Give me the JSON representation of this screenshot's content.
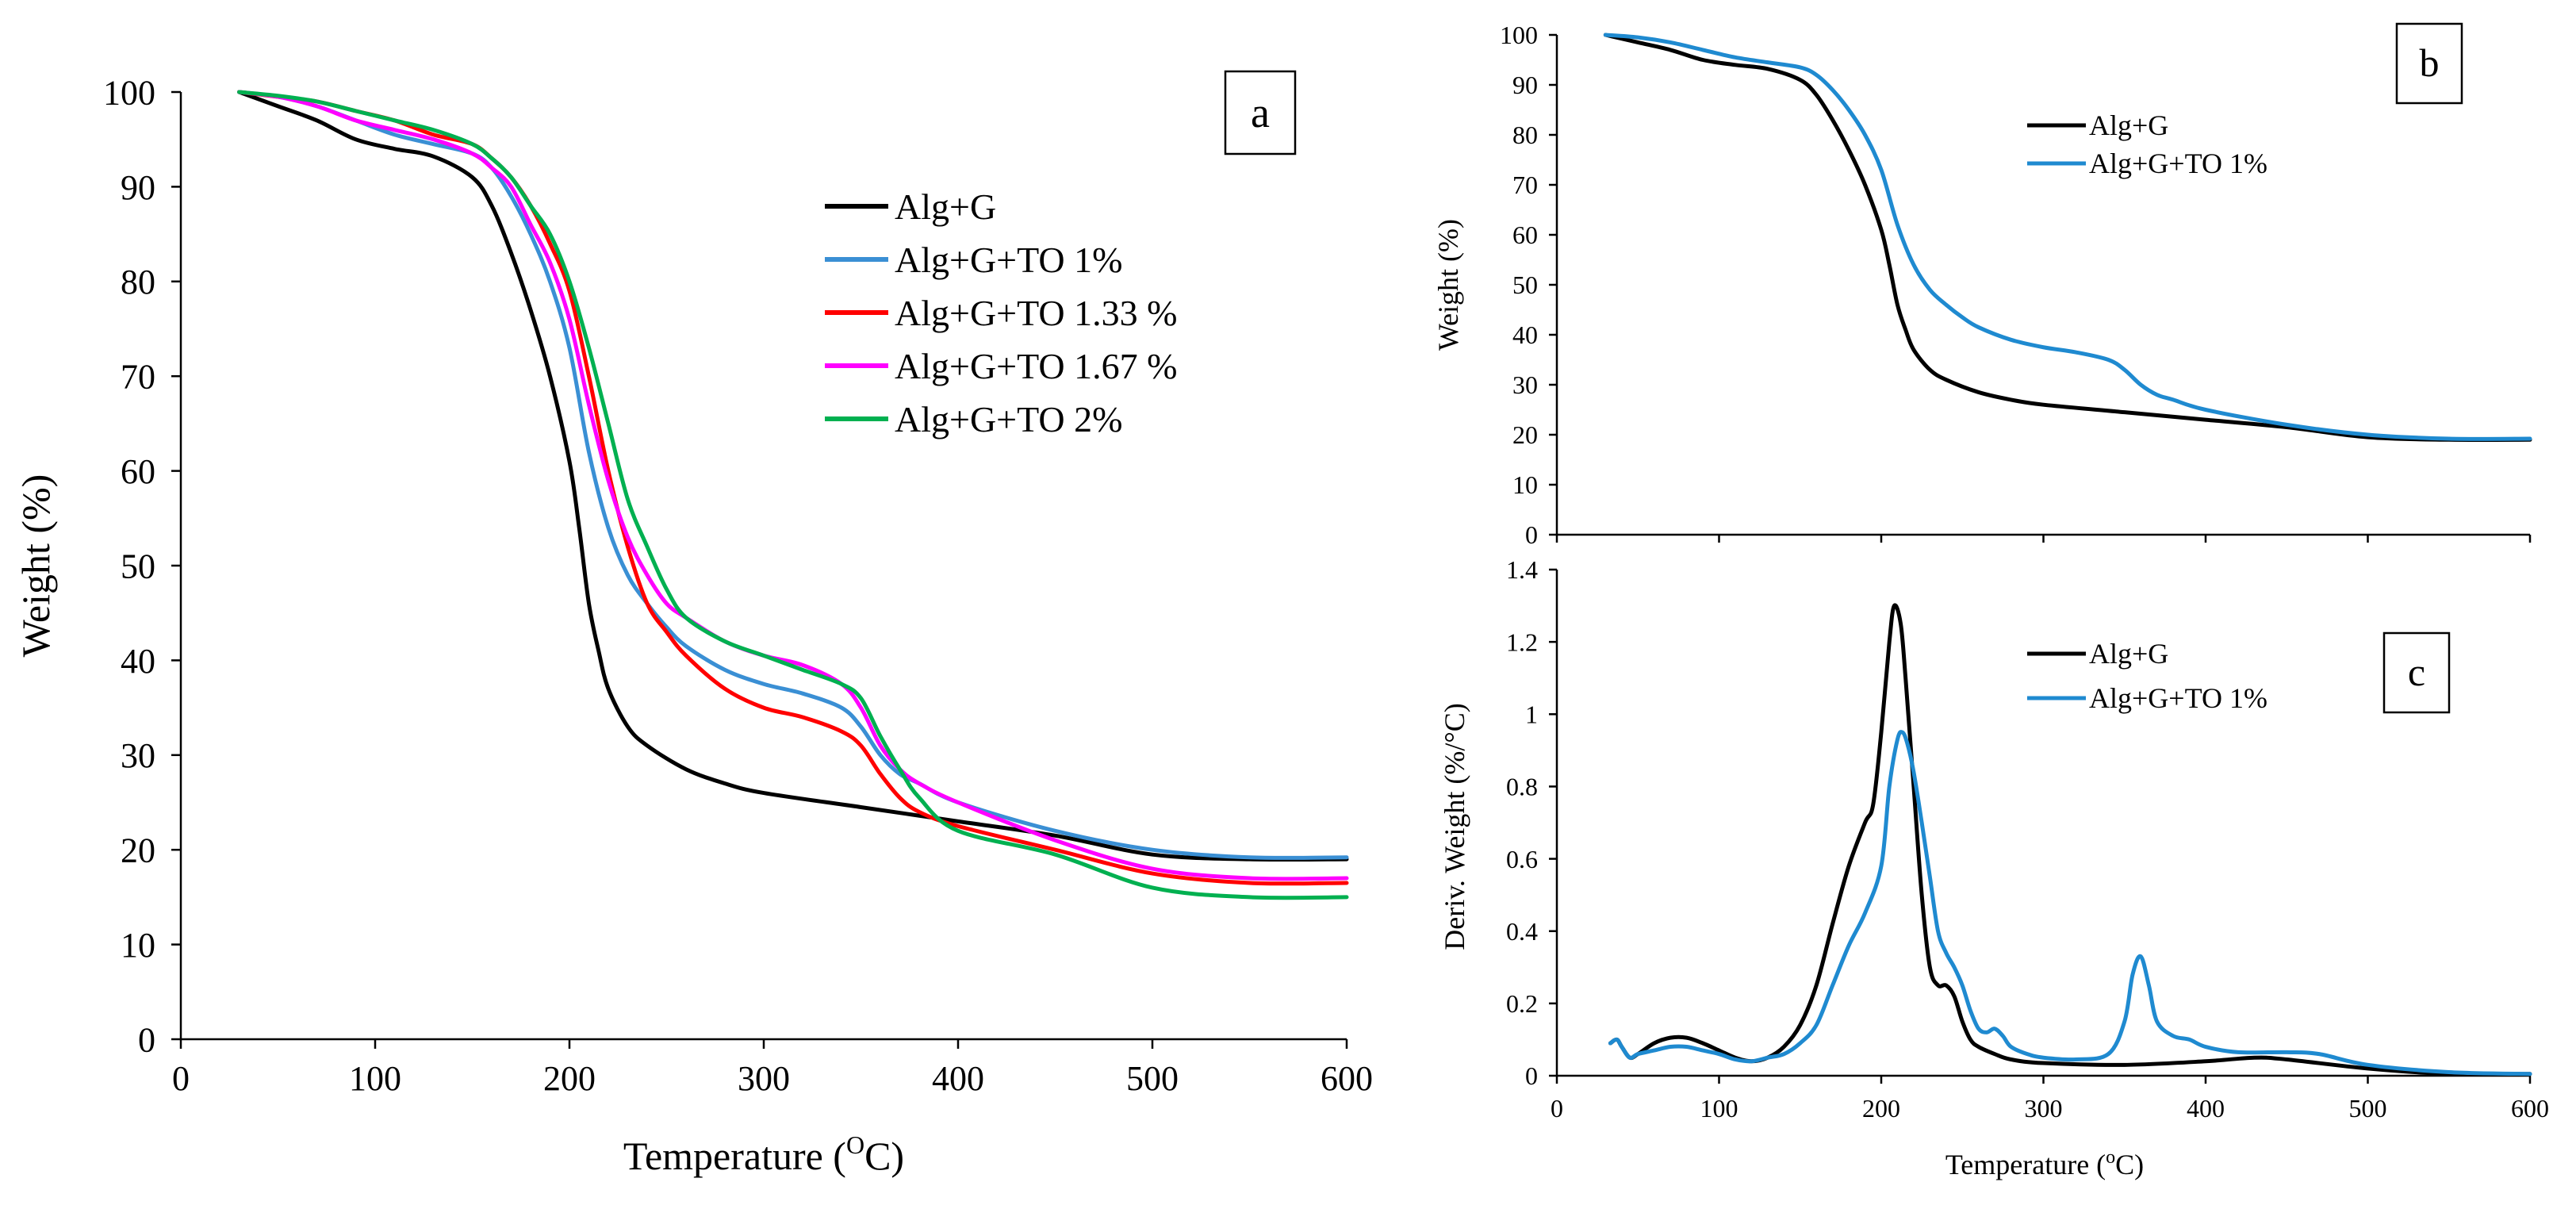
{
  "chart_data": [
    {
      "panel": "a",
      "type": "line",
      "xlabel": "Temperature (",
      "xlabel_unit": "O",
      "xlabel_suffix": "C)",
      "ylabel": "Weight (%)",
      "xlim": [
        0,
        600
      ],
      "ylim": [
        0,
        100
      ],
      "xticks": [
        0,
        100,
        200,
        300,
        400,
        500,
        600
      ],
      "yticks": [
        0,
        10,
        20,
        30,
        40,
        50,
        60,
        70,
        80,
        90,
        100
      ],
      "legend_position": "top-right",
      "series": [
        {
          "name": "Alg+G",
          "color": "#000000",
          "x": [
            30,
            50,
            70,
            90,
            110,
            130,
            150,
            160,
            170,
            180,
            190,
            200,
            205,
            210,
            215,
            220,
            230,
            240,
            260,
            280,
            300,
            350,
            400,
            450,
            500,
            550,
            600
          ],
          "y": [
            100,
            98.5,
            97,
            95,
            94,
            93.2,
            91,
            88,
            83,
            77,
            70,
            61,
            54,
            46,
            41,
            37,
            33,
            31,
            28.5,
            27,
            26,
            24.5,
            23,
            21.5,
            19.5,
            19,
            19
          ]
        },
        {
          "name": "Alg+G+TO 1%",
          "color": "#3a8fd4",
          "x": [
            30,
            50,
            70,
            90,
            110,
            130,
            150,
            160,
            170,
            180,
            190,
            200,
            210,
            220,
            230,
            240,
            250,
            260,
            280,
            300,
            320,
            340,
            350,
            360,
            370,
            380,
            400,
            450,
            500,
            550,
            600
          ],
          "y": [
            100,
            99.5,
            98.5,
            97,
            95.5,
            94.5,
            93.5,
            92,
            89,
            85,
            80,
            73,
            62,
            54,
            49,
            46,
            43.5,
            41.5,
            39,
            37.5,
            36.5,
            35,
            33,
            30,
            28,
            27,
            25,
            22,
            20,
            19.2,
            19.2
          ]
        },
        {
          "name": "Alg+G+TO 1.33 %",
          "color": "#ff0000",
          "x": [
            30,
            50,
            70,
            90,
            110,
            130,
            150,
            160,
            170,
            180,
            190,
            200,
            210,
            220,
            230,
            240,
            250,
            260,
            280,
            300,
            320,
            340,
            350,
            360,
            370,
            380,
            400,
            450,
            500,
            550,
            600
          ],
          "y": [
            100,
            99.5,
            99,
            98,
            97,
            95.5,
            94.5,
            93,
            91,
            88,
            84,
            79,
            70,
            60,
            52,
            46,
            43,
            40.5,
            37,
            35,
            34,
            32.5,
            31,
            28,
            25.5,
            24,
            22.5,
            20,
            17.5,
            16.5,
            16.5
          ]
        },
        {
          "name": "Alg+G+TO 1.67 %",
          "color": "#ff00ff",
          "x": [
            30,
            50,
            70,
            90,
            110,
            130,
            150,
            160,
            170,
            180,
            190,
            200,
            210,
            220,
            230,
            240,
            250,
            260,
            280,
            300,
            320,
            340,
            350,
            360,
            370,
            380,
            400,
            450,
            500,
            550,
            600
          ],
          "y": [
            100,
            99.5,
            98.5,
            97,
            96,
            95,
            93.5,
            92,
            90,
            86,
            82,
            76,
            67,
            59,
            53,
            49,
            46,
            44.5,
            42,
            40.5,
            39.5,
            37.5,
            35,
            31,
            28.5,
            27,
            25,
            21,
            18,
            17,
            17
          ]
        },
        {
          "name": "Alg+G+TO 2%",
          "color": "#00b050",
          "x": [
            30,
            50,
            70,
            90,
            110,
            130,
            150,
            160,
            170,
            180,
            190,
            200,
            210,
            220,
            230,
            240,
            250,
            260,
            280,
            300,
            320,
            340,
            350,
            360,
            370,
            380,
            400,
            450,
            500,
            550,
            600
          ],
          "y": [
            100,
            99.6,
            99,
            98,
            97,
            96,
            94.5,
            93,
            91,
            88,
            85,
            80,
            73,
            65,
            57,
            52,
            47.5,
            44.5,
            42,
            40.5,
            39,
            37.5,
            36,
            32,
            28.5,
            25.5,
            22,
            19.5,
            16,
            15,
            15
          ]
        }
      ]
    },
    {
      "panel": "b",
      "type": "line",
      "xlabel": "",
      "ylabel": "Weight (%)",
      "xlim": [
        0,
        600
      ],
      "ylim": [
        0,
        100
      ],
      "xticks": [],
      "yticks": [
        0,
        10,
        20,
        30,
        40,
        50,
        60,
        70,
        80,
        90,
        100
      ],
      "legend_position": "top-right",
      "series": [
        {
          "name": "Alg+G",
          "color": "#000000",
          "x": [
            30,
            50,
            70,
            90,
            110,
            130,
            150,
            160,
            170,
            180,
            190,
            200,
            205,
            210,
            215,
            220,
            230,
            240,
            260,
            280,
            300,
            350,
            400,
            450,
            500,
            550,
            600
          ],
          "y": [
            100,
            98.5,
            97,
            95,
            94,
            93.2,
            91,
            88,
            83,
            77,
            70,
            61,
            54,
            46,
            41,
            37,
            33,
            31,
            28.5,
            27,
            26,
            24.5,
            23,
            21.5,
            19.5,
            19,
            19
          ]
        },
        {
          "name": "Alg+G+TO 1%",
          "color": "#1f8ad0",
          "x": [
            30,
            50,
            70,
            90,
            110,
            130,
            150,
            160,
            170,
            180,
            190,
            200,
            210,
            220,
            230,
            240,
            250,
            260,
            280,
            300,
            320,
            340,
            350,
            360,
            370,
            380,
            400,
            450,
            500,
            550,
            600
          ],
          "y": [
            100,
            99.5,
            98.5,
            97,
            95.5,
            94.5,
            93.5,
            92,
            89,
            85,
            80,
            73,
            62,
            54,
            49,
            46,
            43.5,
            41.5,
            39,
            37.5,
            36.5,
            35,
            33,
            30,
            28,
            27,
            25,
            22,
            20,
            19.2,
            19.2
          ]
        }
      ]
    },
    {
      "panel": "c",
      "type": "line",
      "xlabel": "Temperature (",
      "xlabel_unit": "o",
      "xlabel_suffix": "C)",
      "ylabel": "Deriv. Weight (%/°C)",
      "xlim": [
        0,
        600
      ],
      "ylim": [
        0,
        1.4
      ],
      "xticks": [
        0,
        100,
        200,
        300,
        400,
        500,
        600
      ],
      "yticks": [
        0,
        0.2,
        0.4,
        0.6,
        0.8,
        1,
        1.2,
        1.4
      ],
      "legend_position": "top-right",
      "series": [
        {
          "name": "Alg+G",
          "color": "#000000",
          "x": [
            33,
            37,
            40,
            45,
            50,
            60,
            70,
            80,
            90,
            100,
            110,
            120,
            130,
            140,
            150,
            160,
            170,
            180,
            190,
            195,
            200,
            205,
            208,
            212,
            215,
            220,
            225,
            230,
            235,
            240,
            245,
            250,
            255,
            260,
            270,
            280,
            300,
            350,
            400,
            430,
            450,
            500,
            550,
            600
          ],
          "y": [
            0.09,
            0.1,
            0.08,
            0.05,
            0.06,
            0.09,
            0.105,
            0.105,
            0.09,
            0.07,
            0.05,
            0.04,
            0.05,
            0.08,
            0.14,
            0.25,
            0.42,
            0.58,
            0.7,
            0.75,
            0.95,
            1.2,
            1.3,
            1.25,
            1.1,
            0.8,
            0.5,
            0.3,
            0.25,
            0.25,
            0.22,
            0.15,
            0.1,
            0.08,
            0.06,
            0.045,
            0.035,
            0.03,
            0.04,
            0.05,
            0.045,
            0.02,
            0.005,
            0.005
          ]
        },
        {
          "name": "Alg+G+TO 1%",
          "color": "#1f8ad0",
          "x": [
            33,
            37,
            40,
            45,
            50,
            60,
            70,
            80,
            90,
            100,
            110,
            120,
            130,
            140,
            150,
            160,
            170,
            180,
            190,
            200,
            205,
            210,
            213,
            216,
            220,
            225,
            230,
            235,
            240,
            245,
            250,
            255,
            260,
            265,
            270,
            275,
            280,
            290,
            300,
            320,
            340,
            350,
            355,
            360,
            365,
            370,
            380,
            390,
            400,
            420,
            450,
            470,
            500,
            550,
            600
          ],
          "y": [
            0.09,
            0.1,
            0.08,
            0.05,
            0.06,
            0.07,
            0.08,
            0.08,
            0.07,
            0.06,
            0.045,
            0.04,
            0.05,
            0.06,
            0.09,
            0.14,
            0.25,
            0.36,
            0.45,
            0.58,
            0.8,
            0.93,
            0.95,
            0.92,
            0.84,
            0.7,
            0.55,
            0.4,
            0.34,
            0.3,
            0.25,
            0.18,
            0.13,
            0.12,
            0.13,
            0.11,
            0.08,
            0.06,
            0.05,
            0.045,
            0.06,
            0.15,
            0.28,
            0.33,
            0.25,
            0.15,
            0.11,
            0.1,
            0.08,
            0.065,
            0.065,
            0.06,
            0.03,
            0.01,
            0.005
          ]
        }
      ]
    }
  ],
  "panel_labels": {
    "a": "a",
    "b": "b",
    "c": "c"
  },
  "legend_a": [
    "Alg+G",
    "Alg+G+TO 1%",
    "Alg+G+TO 1.33 %",
    "Alg+G+TO 1.67 %",
    "Alg+G+TO 2%"
  ],
  "legend_b": [
    "Alg+G",
    "Alg+G+TO 1%"
  ],
  "legend_c": [
    "Alg+G",
    "Alg+G+TO 1%"
  ]
}
